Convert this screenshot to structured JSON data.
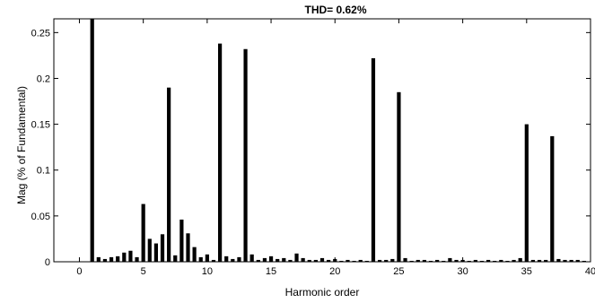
{
  "chart_data": {
    "type": "bar",
    "title": "THD= 0.62%",
    "xlabel": "Harmonic order",
    "ylabel": "Mag (% of Fundamental)",
    "xlim": [
      -2,
      40
    ],
    "ylim": [
      0,
      0.265
    ],
    "x_ticks": [
      0,
      5,
      10,
      15,
      20,
      25,
      30,
      35,
      40
    ],
    "y_ticks": [
      0,
      0.05,
      0.1,
      0.15,
      0.2,
      0.25
    ],
    "y_tick_labels": [
      "0",
      "0.05",
      "0.1",
      "0.15",
      "0.2",
      "0.25"
    ],
    "grid": false,
    "bar_color": "#000000",
    "x": [
      0,
      0.5,
      1,
      1.5,
      2,
      2.5,
      3,
      3.5,
      4,
      4.5,
      5,
      5.5,
      6,
      6.5,
      7,
      7.5,
      8,
      8.5,
      9,
      9.5,
      10,
      10.5,
      11,
      11.5,
      12,
      12.5,
      13,
      13.5,
      14,
      14.5,
      15,
      15.5,
      16,
      16.5,
      17,
      17.5,
      18,
      18.5,
      19,
      19.5,
      20,
      20.5,
      21,
      21.5,
      22,
      22.5,
      23,
      23.5,
      24,
      24.5,
      25,
      25.5,
      26,
      26.5,
      27,
      27.5,
      28,
      28.5,
      29,
      29.5,
      30,
      30.5,
      31,
      31.5,
      32,
      32.5,
      33,
      33.5,
      34,
      34.5,
      35,
      35.5,
      36,
      36.5,
      37,
      37.5,
      38,
      38.5,
      39,
      39.5
    ],
    "values": [
      0,
      0,
      0.27,
      0.005,
      0.003,
      0.005,
      0.006,
      0.01,
      0.012,
      0.005,
      0.063,
      0.025,
      0.02,
      0.03,
      0.19,
      0.007,
      0.046,
      0.031,
      0.016,
      0.005,
      0.008,
      0.002,
      0.238,
      0.006,
      0.003,
      0.005,
      0.232,
      0.008,
      0.002,
      0.004,
      0.006,
      0.003,
      0.004,
      0.002,
      0.009,
      0.004,
      0.002,
      0.002,
      0.004,
      0.002,
      0.003,
      0.001,
      0.002,
      0.001,
      0.002,
      0.001,
      0.222,
      0.002,
      0.002,
      0.003,
      0.185,
      0.004,
      0.001,
      0.002,
      0.002,
      0.001,
      0.002,
      0.001,
      0.004,
      0.002,
      0.002,
      0.001,
      0.002,
      0.001,
      0.002,
      0.001,
      0.002,
      0.001,
      0.002,
      0.004,
      0.15,
      0.002,
      0.002,
      0.002,
      0.137,
      0.003,
      0.002,
      0.002,
      0.002,
      0.001
    ]
  }
}
